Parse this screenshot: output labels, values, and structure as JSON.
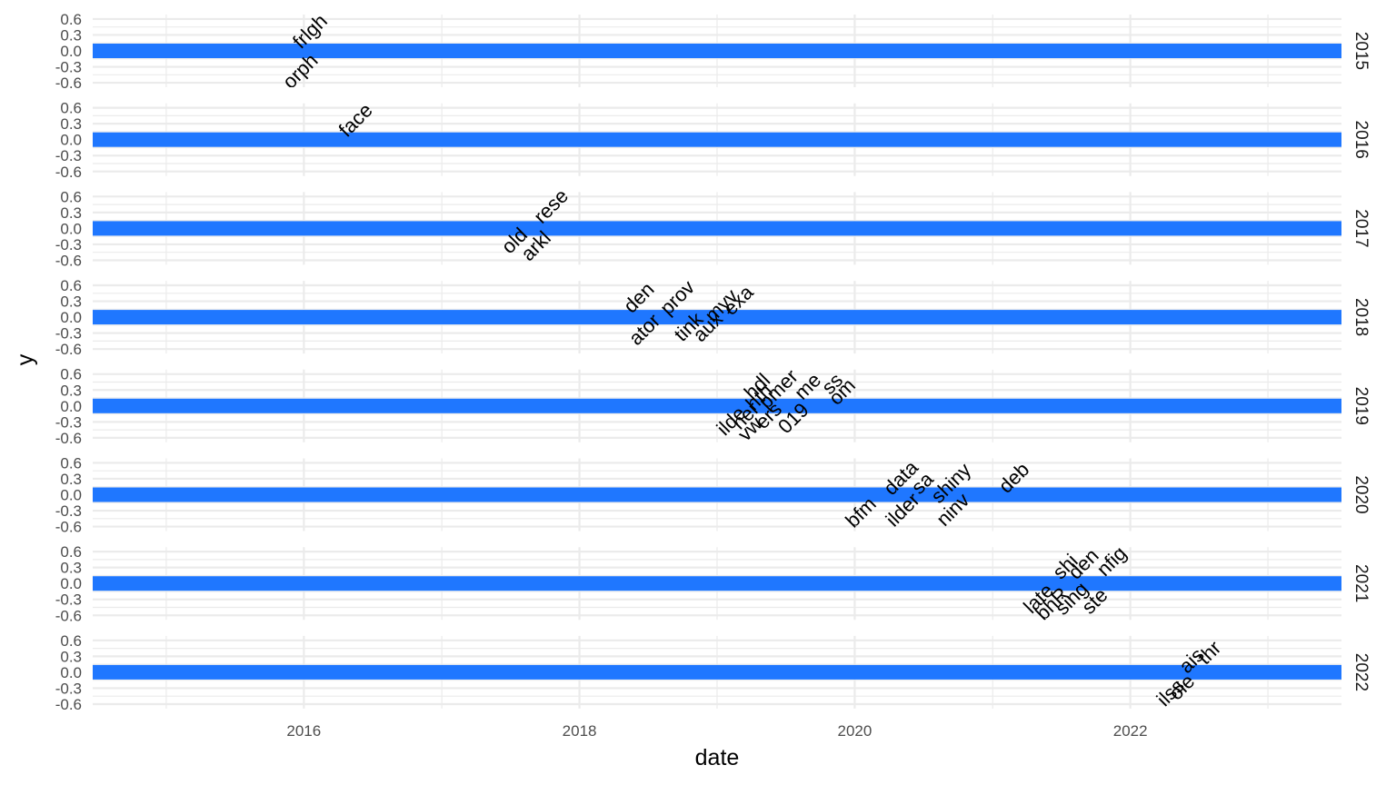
{
  "chart_data": {
    "type": "timeline",
    "xlabel": "date",
    "ylabel": "y",
    "xlim": [
      "2014-06-20",
      "2023-07-15"
    ],
    "ylim": [
      -0.65,
      0.65
    ],
    "x_ticks": [
      "2016",
      "2018",
      "2020",
      "2022"
    ],
    "y_ticks": [
      0.6,
      0.3,
      0.0,
      -0.3,
      -0.6
    ],
    "y_tick_labels": [
      "0.6",
      "0.3",
      "0.0",
      "-0.3",
      "-0.6"
    ],
    "facets": [
      "2015",
      "2016",
      "2017",
      "2018",
      "2019",
      "2020",
      "2021",
      "2022"
    ],
    "band_color": "#1f77ff",
    "grid_color": "#ebebeb",
    "labels": [
      {
        "facet": "2015",
        "date": "2016-01-20",
        "y": 0.35,
        "text": "frlgh"
      },
      {
        "facet": "2015",
        "date": "2015-12-25",
        "y": -0.4,
        "text": "orph"
      },
      {
        "facet": "2016",
        "date": "2016-05-20",
        "y": 0.35,
        "text": "face"
      },
      {
        "facet": "2017",
        "date": "2017-07-15",
        "y": -0.25,
        "text": "old"
      },
      {
        "facet": "2017",
        "date": "2017-10-20",
        "y": 0.4,
        "text": "rese"
      },
      {
        "facet": "2017",
        "date": "2017-09-10",
        "y": -0.35,
        "text": "arkl"
      },
      {
        "facet": "2018",
        "date": "2018-06-10",
        "y": 0.35,
        "text": "den"
      },
      {
        "facet": "2018",
        "date": "2018-09-20",
        "y": 0.35,
        "text": "prov"
      },
      {
        "facet": "2018",
        "date": "2018-06-25",
        "y": -0.25,
        "text": "ator"
      },
      {
        "facet": "2018",
        "date": "2019-01-15",
        "y": 0.2,
        "text": "myv"
      },
      {
        "facet": "2018",
        "date": "2019-03-01",
        "y": 0.3,
        "text": "exa"
      },
      {
        "facet": "2018",
        "date": "2018-10-20",
        "y": -0.2,
        "text": "tink"
      },
      {
        "facet": "2018",
        "date": "2018-12-10",
        "y": -0.2,
        "text": "aux"
      },
      {
        "facet": "2019",
        "date": "2019-04-20",
        "y": 0.35,
        "text": "hdl"
      },
      {
        "facet": "2019",
        "date": "2019-06-15",
        "y": 0.3,
        "text": "pmer"
      },
      {
        "facet": "2019",
        "date": "2019-09-01",
        "y": 0.35,
        "text": "me"
      },
      {
        "facet": "2019",
        "date": "2019-11-05",
        "y": 0.4,
        "text": "ss"
      },
      {
        "facet": "2019",
        "date": "2019-12-01",
        "y": 0.25,
        "text": "om"
      },
      {
        "facet": "2019",
        "date": "2019-04-25",
        "y": 0.15,
        "text": "hth"
      },
      {
        "facet": "2019",
        "date": "2019-02-10",
        "y": -0.3,
        "text": "ilde"
      },
      {
        "facet": "2019",
        "date": "2019-03-20",
        "y": -0.2,
        "text": "ner"
      },
      {
        "facet": "2019",
        "date": "2019-05-20",
        "y": -0.2,
        "text": "ers"
      },
      {
        "facet": "2019",
        "date": "2019-07-25",
        "y": -0.25,
        "text": "019"
      },
      {
        "facet": "2019",
        "date": "2019-04-01",
        "y": -0.45,
        "text": "vw"
      },
      {
        "facet": "2020",
        "date": "2020-05-05",
        "y": 0.3,
        "text": "data"
      },
      {
        "facet": "2020",
        "date": "2020-07-01",
        "y": 0.2,
        "text": "sa"
      },
      {
        "facet": "2020",
        "date": "2020-09-15",
        "y": 0.2,
        "text": "shiny"
      },
      {
        "facet": "2020",
        "date": "2021-03-01",
        "y": 0.3,
        "text": "deb"
      },
      {
        "facet": "2020",
        "date": "2020-01-20",
        "y": -0.35,
        "text": "bfm"
      },
      {
        "facet": "2020",
        "date": "2020-05-10",
        "y": -0.3,
        "text": "ilder"
      },
      {
        "facet": "2020",
        "date": "2020-09-20",
        "y": -0.3,
        "text": "ninv"
      },
      {
        "facet": "2021",
        "date": "2021-05-05",
        "y": -0.3,
        "text": "late"
      },
      {
        "facet": "2021",
        "date": "2021-06-10",
        "y": -0.4,
        "text": "bhR"
      },
      {
        "facet": "2021",
        "date": "2021-07-15",
        "y": 0.3,
        "text": "shi"
      },
      {
        "facet": "2021",
        "date": "2021-09-01",
        "y": 0.35,
        "text": "den"
      },
      {
        "facet": "2021",
        "date": "2021-08-01",
        "y": -0.3,
        "text": "sing"
      },
      {
        "facet": "2021",
        "date": "2021-11-15",
        "y": 0.4,
        "text": "nfig"
      },
      {
        "facet": "2021",
        "date": "2021-10-01",
        "y": -0.35,
        "text": "ste"
      },
      {
        "facet": "2022",
        "date": "2022-08-01",
        "y": 0.35,
        "text": "thr"
      },
      {
        "facet": "2022",
        "date": "2022-06-15",
        "y": 0.2,
        "text": "ais"
      },
      {
        "facet": "2022",
        "date": "2022-04-20",
        "y": -0.4,
        "text": "ilss"
      },
      {
        "facet": "2022",
        "date": "2022-05-20",
        "y": -0.3,
        "text": "ole"
      }
    ]
  }
}
